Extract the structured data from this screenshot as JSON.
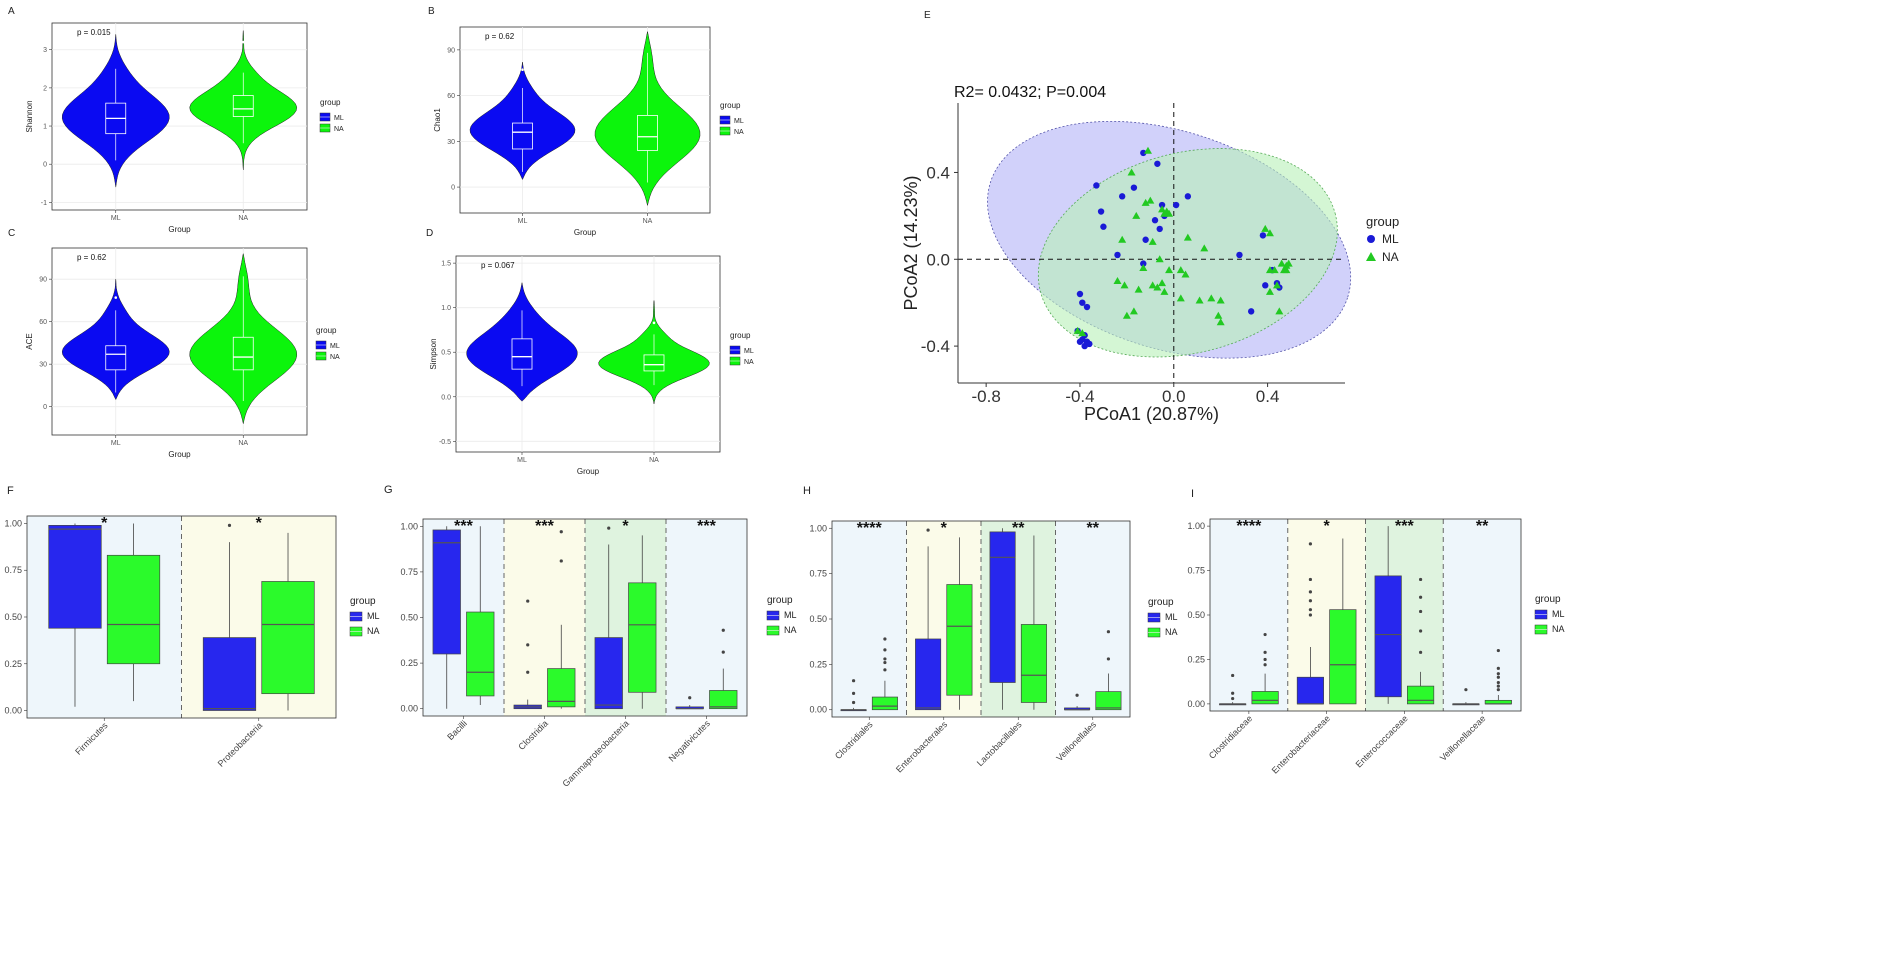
{
  "colors": {
    "ml_violin": "#0a0af2",
    "na_violin": "#0cf50c",
    "ml_box": "#2727ee",
    "na_box": "#2bfa2b",
    "pcoa_ml": "#1a1ad6",
    "pcoa_na": "#22c922",
    "ellipse_ml": "#b3b3f7",
    "ellipse_na": "#b8f0b8",
    "panel_bg": "#ffffff",
    "grid": "#ebebeb",
    "shade_blue": "#eef6fb",
    "shade_yellow": "#fbfbe9",
    "shade_green": "#dff3df"
  },
  "chart_data": [
    {
      "panel": "A",
      "type": "violin",
      "title": "",
      "xlabel": "Group",
      "ylabel": "Shannon",
      "categories": [
        "ML",
        "NA"
      ],
      "ylim": [
        -1.2,
        3.7
      ],
      "yticks": [
        -1,
        0,
        1,
        2,
        3
      ],
      "annotation": "p = 0.015",
      "legend": {
        "title": "group",
        "items": [
          "ML",
          "NA"
        ]
      },
      "series": [
        {
          "name": "ML",
          "q1": 0.8,
          "median": 1.2,
          "q3": 1.6,
          "whisker_low": 0.1,
          "whisker_high": 2.5,
          "min": -0.6,
          "max": 3.4,
          "outliers": []
        },
        {
          "name": "NA",
          "q1": 1.25,
          "median": 1.45,
          "q3": 1.8,
          "whisker_low": 0.55,
          "whisker_high": 2.4,
          "min": -0.15,
          "max": 3.5,
          "outliers": [
            3.2
          ]
        }
      ]
    },
    {
      "panel": "B",
      "type": "violin",
      "title": "",
      "xlabel": "Group",
      "ylabel": "Chao1",
      "categories": [
        "ML",
        "NA"
      ],
      "ylim": [
        -17,
        105
      ],
      "yticks": [
        0,
        30,
        60,
        90
      ],
      "annotation": "p = 0.62",
      "legend": {
        "title": "group",
        "items": [
          "ML",
          "NA"
        ]
      },
      "series": [
        {
          "name": "ML",
          "q1": 25,
          "median": 36,
          "q3": 42,
          "whisker_low": 10,
          "whisker_high": 65,
          "min": 5,
          "max": 82,
          "outliers": [
            77
          ]
        },
        {
          "name": "NA",
          "q1": 24,
          "median": 33,
          "q3": 47,
          "whisker_low": 3,
          "whisker_high": 88,
          "min": -12,
          "max": 102,
          "outliers": []
        }
      ]
    },
    {
      "panel": "C",
      "type": "violin",
      "title": "",
      "xlabel": "Group",
      "ylabel": "ACE",
      "categories": [
        "ML",
        "NA"
      ],
      "ylim": [
        -20,
        112
      ],
      "yticks": [
        0,
        30,
        60,
        90
      ],
      "annotation": "p = 0.62",
      "legend": {
        "title": "group",
        "items": [
          "ML",
          "NA"
        ]
      },
      "series": [
        {
          "name": "ML",
          "q1": 26,
          "median": 37,
          "q3": 43,
          "whisker_low": 10,
          "whisker_high": 68,
          "min": 5,
          "max": 90,
          "outliers": [
            77
          ]
        },
        {
          "name": "NA",
          "q1": 26,
          "median": 35,
          "q3": 49,
          "whisker_low": 4,
          "whisker_high": 92,
          "min": -12,
          "max": 108,
          "outliers": []
        }
      ]
    },
    {
      "panel": "D",
      "type": "violin",
      "title": "",
      "xlabel": "Group",
      "ylabel": "Simpson",
      "categories": [
        "ML",
        "NA"
      ],
      "ylim": [
        -0.62,
        1.58
      ],
      "yticks": [
        -0.5,
        0.0,
        0.5,
        1.0,
        1.5
      ],
      "annotation": "p = 0.067",
      "legend": {
        "title": "group",
        "items": [
          "ML",
          "NA"
        ]
      },
      "series": [
        {
          "name": "ML",
          "q1": 0.31,
          "median": 0.45,
          "q3": 0.65,
          "whisker_low": 0.12,
          "whisker_high": 0.97,
          "min": -0.05,
          "max": 1.28,
          "outliers": []
        },
        {
          "name": "NA",
          "q1": 0.29,
          "median": 0.36,
          "q3": 0.47,
          "whisker_low": 0.13,
          "whisker_high": 0.7,
          "min": -0.08,
          "max": 1.08,
          "outliers": [
            0.83
          ]
        }
      ]
    },
    {
      "panel": "E",
      "type": "scatter",
      "title": "R2= 0.0432; P=0.004",
      "xlabel": "PCoA1 (20.87%)",
      "ylabel": "PCoA2 (14.23%)",
      "xlim": [
        -0.92,
        0.73
      ],
      "ylim": [
        -0.57,
        0.72
      ],
      "xticks": [
        -0.8,
        -0.4,
        0.0,
        0.4
      ],
      "yticks": [
        -0.4,
        0.0,
        0.4
      ],
      "legend": {
        "title": "group",
        "items": [
          "ML",
          "NA"
        ]
      },
      "ellipses": [
        {
          "name": "ML",
          "cx": -0.02,
          "cy": 0.09,
          "rx": 0.8,
          "ry": 0.5,
          "angle": 18
        },
        {
          "name": "NA",
          "cx": 0.06,
          "cy": 0.03,
          "rx": 0.65,
          "ry": 0.46,
          "angle": -15
        }
      ],
      "series": [
        {
          "name": "ML",
          "x": [
            -0.13,
            -0.07,
            -0.17,
            -0.33,
            -0.31,
            -0.22,
            -0.08,
            -0.06,
            -0.05,
            -0.12,
            -0.04,
            0.01,
            0.06,
            -0.3,
            -0.13,
            -0.24,
            0.28,
            0.38,
            0.44,
            0.45,
            0.42,
            0.39,
            0.33,
            -0.4,
            -0.39,
            -0.37,
            -0.41,
            -0.38,
            -0.4,
            -0.38,
            -0.39,
            -0.37,
            -0.36
          ],
          "y": [
            0.49,
            0.44,
            0.33,
            0.34,
            0.22,
            0.29,
            0.18,
            0.14,
            0.25,
            0.09,
            0.2,
            0.25,
            0.29,
            0.15,
            -0.02,
            0.02,
            0.02,
            0.11,
            -0.11,
            -0.13,
            -0.05,
            -0.12,
            -0.24,
            -0.16,
            -0.2,
            -0.22,
            -0.33,
            -0.35,
            -0.38,
            -0.4,
            -0.37,
            -0.38,
            -0.39
          ]
        },
        {
          "name": "NA",
          "x": [
            -0.11,
            -0.18,
            -0.12,
            -0.1,
            -0.16,
            -0.05,
            -0.03,
            -0.04,
            -0.02,
            0.06,
            -0.22,
            -0.09,
            -0.06,
            -0.02,
            0.03,
            0.05,
            -0.07,
            -0.09,
            -0.04,
            -0.17,
            -0.2,
            -0.24,
            -0.13,
            -0.05,
            0.16,
            0.2,
            0.2,
            0.39,
            0.41,
            0.46,
            0.48,
            0.49,
            0.47,
            0.41,
            0.43,
            0.44,
            0.41,
            -0.41,
            -0.39,
            -0.21,
            -0.15,
            0.03,
            0.11,
            0.19,
            0.13,
            0.48,
            0.45
          ],
          "y": [
            0.5,
            0.4,
            0.26,
            0.27,
            0.2,
            0.23,
            0.22,
            0.21,
            0.21,
            0.1,
            0.09,
            0.08,
            0.0,
            -0.05,
            -0.05,
            -0.07,
            -0.13,
            -0.12,
            -0.15,
            -0.24,
            -0.26,
            -0.1,
            -0.04,
            -0.11,
            -0.18,
            -0.19,
            -0.29,
            0.14,
            0.12,
            -0.02,
            -0.03,
            -0.02,
            -0.05,
            -0.05,
            -0.05,
            -0.12,
            -0.15,
            -0.33,
            -0.34,
            -0.12,
            -0.14,
            -0.18,
            -0.19,
            -0.26,
            0.05,
            -0.05,
            -0.24
          ]
        }
      ]
    },
    {
      "panel": "F",
      "type": "box",
      "title": "",
      "categories": [
        "Firmicutes",
        "Proteobacteria"
      ],
      "ylim": [
        -0.04,
        1.04
      ],
      "yticks": [
        0.0,
        0.25,
        0.5,
        0.75,
        1.0
      ],
      "ytick_labels": [
        "0.00",
        "0.25",
        "0.50",
        "0.75",
        "1.00"
      ],
      "shading": [
        "blue",
        "yellow"
      ],
      "significance": [
        "*",
        "*"
      ],
      "legend": {
        "title": "group",
        "items": [
          "ML",
          "NA"
        ]
      },
      "series": [
        {
          "name": "ML",
          "boxes": [
            {
              "whisker_low": 0.02,
              "q1": 0.44,
              "median": 0.97,
              "q3": 0.99,
              "whisker_high": 1.0,
              "outliers": []
            },
            {
              "whisker_low": 0.0,
              "q1": 0.0,
              "median": 0.01,
              "q3": 0.39,
              "whisker_high": 0.9,
              "outliers": [
                0.99
              ]
            }
          ]
        },
        {
          "name": "NA",
          "boxes": [
            {
              "whisker_low": 0.05,
              "q1": 0.25,
              "median": 0.46,
              "q3": 0.83,
              "whisker_high": 1.0,
              "outliers": []
            },
            {
              "whisker_low": 0.0,
              "q1": 0.09,
              "median": 0.46,
              "q3": 0.69,
              "whisker_high": 0.95,
              "outliers": []
            }
          ]
        }
      ]
    },
    {
      "panel": "G",
      "type": "box",
      "title": "",
      "categories": [
        "Bacilli",
        "Clostridia",
        "Gammaproteobacteria",
        "Negativicutes"
      ],
      "ylim": [
        -0.04,
        1.04
      ],
      "yticks": [
        0.0,
        0.25,
        0.5,
        0.75,
        1.0
      ],
      "ytick_labels": [
        "0.00",
        "0.25",
        "0.50",
        "0.75",
        "1.00"
      ],
      "shading": [
        "blue",
        "yellow",
        "green",
        "blue"
      ],
      "significance": [
        "***",
        "***",
        "*",
        "***"
      ],
      "legend": {
        "title": "group",
        "items": [
          "ML",
          "NA"
        ]
      },
      "series": [
        {
          "name": "ML",
          "boxes": [
            {
              "whisker_low": 0.0,
              "q1": 0.3,
              "median": 0.91,
              "q3": 0.98,
              "whisker_high": 1.0,
              "outliers": []
            },
            {
              "whisker_low": 0.0,
              "q1": 0.0,
              "median": 0.01,
              "q3": 0.02,
              "whisker_high": 0.05,
              "outliers": [
                0.2,
                0.35,
                0.59
              ]
            },
            {
              "whisker_low": 0.0,
              "q1": 0.0,
              "median": 0.02,
              "q3": 0.39,
              "whisker_high": 0.9,
              "outliers": [
                0.99
              ]
            },
            {
              "whisker_low": 0.0,
              "q1": 0.0,
              "median": 0.0,
              "q3": 0.01,
              "whisker_high": 0.02,
              "outliers": [
                0.06
              ]
            }
          ]
        },
        {
          "name": "NA",
          "boxes": [
            {
              "whisker_low": 0.02,
              "q1": 0.07,
              "median": 0.2,
              "q3": 0.53,
              "whisker_high": 1.0,
              "outliers": []
            },
            {
              "whisker_low": 0.0,
              "q1": 0.01,
              "median": 0.04,
              "q3": 0.22,
              "whisker_high": 0.46,
              "outliers": [
                0.81,
                0.97
              ]
            },
            {
              "whisker_low": 0.0,
              "q1": 0.09,
              "median": 0.46,
              "q3": 0.69,
              "whisker_high": 0.95,
              "outliers": []
            },
            {
              "whisker_low": 0.0,
              "q1": 0.0,
              "median": 0.01,
              "q3": 0.1,
              "whisker_high": 0.22,
              "outliers": [
                0.31,
                0.43
              ]
            }
          ]
        }
      ]
    },
    {
      "panel": "H",
      "type": "box",
      "title": "",
      "categories": [
        "Clostridiales",
        "Enterobacterales",
        "Lactobacillales",
        "Veillonellales"
      ],
      "ylim": [
        -0.04,
        1.04
      ],
      "yticks": [
        0.0,
        0.25,
        0.5,
        0.75,
        1.0
      ],
      "ytick_labels": [
        "0.00",
        "0.25",
        "0.50",
        "0.75",
        "1.00"
      ],
      "shading": [
        "blue",
        "yellow",
        "green",
        "blue"
      ],
      "significance": [
        "****",
        "*",
        "**",
        "**"
      ],
      "legend": {
        "title": "group",
        "items": [
          "ML",
          "NA"
        ]
      },
      "series": [
        {
          "name": "ML",
          "boxes": [
            {
              "whisker_low": 0.0,
              "q1": 0.0,
              "median": 0.0,
              "q3": 0.0,
              "whisker_high": 0.01,
              "outliers": [
                0.04,
                0.09,
                0.16
              ]
            },
            {
              "whisker_low": 0.0,
              "q1": 0.0,
              "median": 0.01,
              "q3": 0.39,
              "whisker_high": 0.9,
              "outliers": [
                0.99
              ]
            },
            {
              "whisker_low": 0.0,
              "q1": 0.15,
              "median": 0.84,
              "q3": 0.98,
              "whisker_high": 1.0,
              "outliers": []
            },
            {
              "whisker_low": 0.0,
              "q1": 0.0,
              "median": 0.0,
              "q3": 0.01,
              "whisker_high": 0.02,
              "outliers": [
                0.08
              ]
            }
          ]
        },
        {
          "name": "NA",
          "boxes": [
            {
              "whisker_low": 0.0,
              "q1": 0.0,
              "median": 0.02,
              "q3": 0.07,
              "whisker_high": 0.16,
              "outliers": [
                0.22,
                0.26,
                0.28,
                0.33,
                0.39
              ]
            },
            {
              "whisker_low": 0.0,
              "q1": 0.08,
              "median": 0.46,
              "q3": 0.69,
              "whisker_high": 0.95,
              "outliers": []
            },
            {
              "whisker_low": 0.0,
              "q1": 0.04,
              "median": 0.19,
              "q3": 0.47,
              "whisker_high": 0.96,
              "outliers": []
            },
            {
              "whisker_low": 0.0,
              "q1": 0.0,
              "median": 0.01,
              "q3": 0.1,
              "whisker_high": 0.2,
              "outliers": [
                0.28,
                0.43
              ]
            }
          ]
        }
      ]
    },
    {
      "panel": "I",
      "type": "box",
      "title": "",
      "categories": [
        "Clostridiaceae",
        "Enterobacteriaceae",
        "Enterococcaceae",
        "Veillonellaceae"
      ],
      "ylim": [
        -0.04,
        1.04
      ],
      "yticks": [
        0.0,
        0.25,
        0.5,
        0.75,
        1.0
      ],
      "ytick_labels": [
        "0.00",
        "0.25",
        "0.50",
        "0.75",
        "1.00"
      ],
      "shading": [
        "blue",
        "yellow",
        "green",
        "blue"
      ],
      "significance": [
        "****",
        "*",
        "***",
        "**"
      ],
      "legend": {
        "title": "group",
        "items": [
          "ML",
          "NA"
        ]
      },
      "series": [
        {
          "name": "ML",
          "boxes": [
            {
              "whisker_low": 0.0,
              "q1": 0.0,
              "median": 0.0,
              "q3": 0.0,
              "whisker_high": 0.01,
              "outliers": [
                0.03,
                0.06,
                0.16
              ]
            },
            {
              "whisker_low": 0.0,
              "q1": 0.0,
              "median": 0.0,
              "q3": 0.15,
              "whisker_high": 0.32,
              "outliers": [
                0.5,
                0.53,
                0.58,
                0.63,
                0.7,
                0.9
              ]
            },
            {
              "whisker_low": 0.0,
              "q1": 0.04,
              "median": 0.39,
              "q3": 0.72,
              "whisker_high": 1.0,
              "outliers": []
            },
            {
              "whisker_low": 0.0,
              "q1": 0.0,
              "median": 0.0,
              "q3": 0.0,
              "whisker_high": 0.01,
              "outliers": [
                0.08
              ]
            }
          ]
        },
        {
          "name": "NA",
          "boxes": [
            {
              "whisker_low": 0.0,
              "q1": 0.0,
              "median": 0.02,
              "q3": 0.07,
              "whisker_high": 0.17,
              "outliers": [
                0.22,
                0.25,
                0.29,
                0.39
              ]
            },
            {
              "whisker_low": 0.0,
              "q1": 0.0,
              "median": 0.22,
              "q3": 0.53,
              "whisker_high": 0.93,
              "outliers": []
            },
            {
              "whisker_low": 0.0,
              "q1": 0.0,
              "median": 0.02,
              "q3": 0.1,
              "whisker_high": 0.18,
              "outliers": [
                0.29,
                0.41,
                0.52,
                0.6,
                0.7
              ]
            },
            {
              "whisker_low": 0.0,
              "q1": 0.0,
              "median": 0.0,
              "q3": 0.02,
              "whisker_high": 0.05,
              "outliers": [
                0.08,
                0.1,
                0.12,
                0.15,
                0.17,
                0.2,
                0.3
              ]
            }
          ]
        }
      ]
    }
  ]
}
